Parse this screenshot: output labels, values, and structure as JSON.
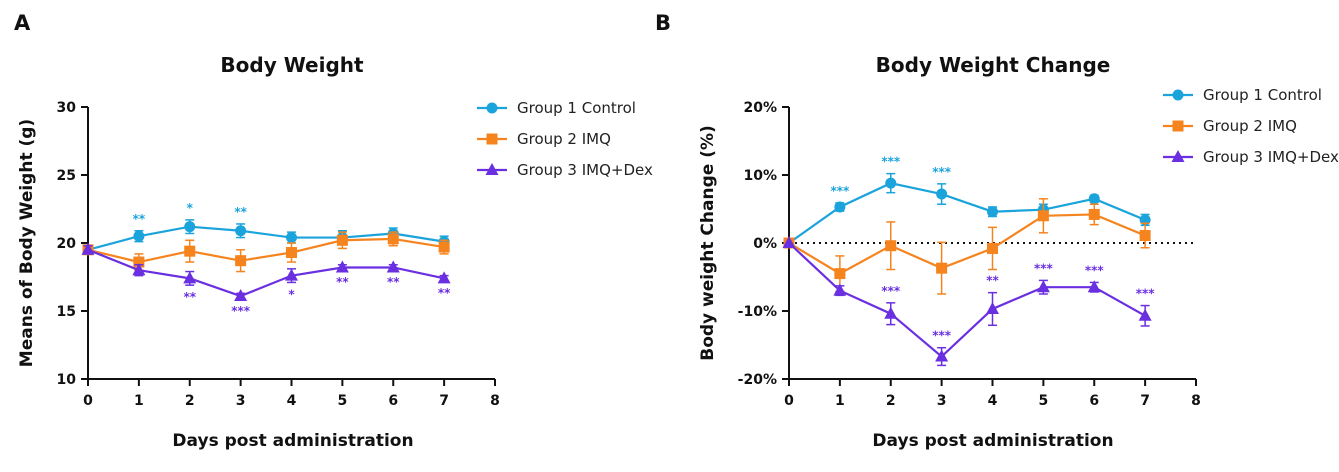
{
  "chart_data": [
    {
      "type": "line",
      "panel_letter": "A",
      "title": "Body Weight",
      "xlabel": "Days post administration",
      "ylabel": "Means of Body Weight (g)",
      "xlim": [
        0,
        8
      ],
      "ylim": [
        10,
        30
      ],
      "xticks": [
        0,
        1,
        2,
        3,
        4,
        5,
        6,
        7,
        8
      ],
      "yticks": [
        10,
        15,
        20,
        25,
        30
      ],
      "ytick_labels": [
        "10",
        "15",
        "20",
        "25",
        "30"
      ],
      "x": [
        0,
        1,
        2,
        3,
        4,
        5,
        6,
        7
      ],
      "legend_position": "top-right",
      "zero_line": false,
      "series": [
        {
          "name": "Group 1 Control",
          "color": "#1ba3dc",
          "marker": "circle",
          "values": [
            19.5,
            20.5,
            21.2,
            20.9,
            20.4,
            20.4,
            20.7,
            20.1
          ],
          "errors": [
            0.3,
            0.4,
            0.5,
            0.5,
            0.4,
            0.5,
            0.4,
            0.4
          ],
          "stars": [
            "",
            "**",
            "*",
            "**",
            "",
            "",
            "",
            ""
          ],
          "star_pos": "above"
        },
        {
          "name": "Group 2 IMQ",
          "color": "#f5841f",
          "marker": "square",
          "values": [
            19.5,
            18.6,
            19.4,
            18.7,
            19.3,
            20.2,
            20.3,
            19.7
          ],
          "errors": [
            0.3,
            0.6,
            0.8,
            0.8,
            0.7,
            0.6,
            0.5,
            0.5
          ],
          "stars": [
            "",
            "",
            "",
            "",
            "",
            "",
            "",
            ""
          ],
          "star_pos": "above"
        },
        {
          "name": "Group 3 IMQ+Dex",
          "color": "#6a2fe0",
          "marker": "triangle",
          "values": [
            19.5,
            18.0,
            17.4,
            16.1,
            17.6,
            18.2,
            18.2,
            17.4
          ],
          "errors": [
            0.3,
            0.4,
            0.5,
            0.2,
            0.5,
            0.2,
            0.2,
            0.2
          ],
          "stars": [
            "",
            "",
            "**",
            "***",
            "*",
            "**",
            "**",
            "**"
          ],
          "star_pos": "below"
        }
      ]
    },
    {
      "type": "line",
      "panel_letter": "B",
      "title": "Body Weight Change",
      "xlabel": "Days post administration",
      "ylabel": "Body weight Change  (%)",
      "xlim": [
        0,
        8
      ],
      "ylim": [
        -20,
        20
      ],
      "xticks": [
        0,
        1,
        2,
        3,
        4,
        5,
        6,
        7,
        8
      ],
      "yticks": [
        -20,
        -10,
        0,
        10,
        20
      ],
      "ytick_labels": [
        "-20%",
        "-10%",
        "0%",
        "10%",
        "20%"
      ],
      "x": [
        0,
        1,
        2,
        3,
        4,
        5,
        6,
        7
      ],
      "legend_position": "top-right",
      "zero_line": true,
      "series": [
        {
          "name": "Group 1 Control",
          "color": "#1ba3dc",
          "marker": "circle",
          "values": [
            0,
            5.3,
            8.8,
            7.2,
            4.6,
            4.9,
            6.5,
            3.4
          ],
          "errors": [
            0,
            0.6,
            1.4,
            1.5,
            0.7,
            0.8,
            0.5,
            0.8
          ],
          "stars": [
            "",
            "***",
            "***",
            "***",
            "",
            "",
            "",
            ""
          ],
          "star_pos": "above"
        },
        {
          "name": "Group 2 IMQ",
          "color": "#f5841f",
          "marker": "square",
          "values": [
            0,
            -4.5,
            -0.4,
            -3.7,
            -0.8,
            4.0,
            4.2,
            1.1
          ],
          "errors": [
            0,
            2.6,
            3.5,
            3.8,
            3.1,
            2.5,
            1.5,
            1.8
          ],
          "stars": [
            "",
            "",
            "",
            "",
            "",
            "",
            "",
            ""
          ],
          "star_pos": "above"
        },
        {
          "name": "Group 3 IMQ+Dex",
          "color": "#6a2fe0",
          "marker": "triangle",
          "values": [
            0,
            -7.0,
            -10.4,
            -16.7,
            -9.7,
            -6.5,
            -6.5,
            -10.7
          ],
          "errors": [
            0,
            0.7,
            1.6,
            1.3,
            2.4,
            1.0,
            0.7,
            1.5
          ],
          "stars": [
            "",
            "",
            "***",
            "***",
            "**",
            "***",
            "***",
            "***"
          ],
          "star_pos": "above-error"
        }
      ]
    }
  ]
}
